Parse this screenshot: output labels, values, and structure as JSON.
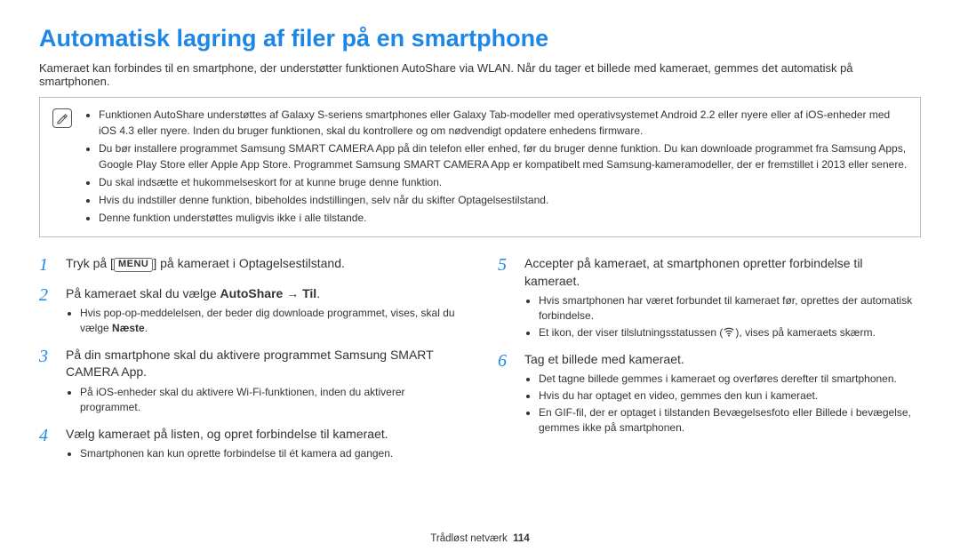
{
  "colors": {
    "title_color": "#1e87e6",
    "step_num_color": "#1e87e6",
    "text_color": "#3a3a3a",
    "border_color": "#bfbfbf",
    "background": "#ffffff"
  },
  "title": "Automatisk lagring af filer på en smartphone",
  "lead": "Kameraet kan forbindes til en smartphone, der understøtter funktionen AutoShare via WLAN. Når du tager et billede med kameraet, gemmes det automatisk på smartphonen.",
  "note_icon_label": "Note",
  "notes": [
    "Funktionen AutoShare understøttes af Galaxy S-seriens smartphones eller Galaxy Tab-modeller med operativsystemet Android 2.2 eller nyere eller af iOS-enheder med iOS 4.3 eller nyere. Inden du bruger funktionen, skal du kontrollere og om nødvendigt opdatere enhedens firmware.",
    "Du bør installere programmet Samsung SMART CAMERA App på din telefon eller enhed, før du bruger denne funktion. Du kan downloade programmet fra Samsung Apps, Google Play Store eller Apple App Store. Programmet Samsung SMART CAMERA App er kompatibelt med Samsung-kameramodeller, der er fremstillet i 2013 eller senere.",
    "Du skal indsætte et hukommelseskort for at kunne bruge denne funktion.",
    "Hvis du indstiller denne funktion, bibeholdes indstillingen, selv når du skifter Optagelsestilstand.",
    "Denne funktion understøttes muligvis ikke i alle tilstande."
  ],
  "menu_label": "MENU",
  "left_steps": [
    {
      "num": "1",
      "main_pre": "Tryk på [",
      "main_post": "] på kameraet i Optagelsestilstand.",
      "has_menu": true,
      "sub": []
    },
    {
      "num": "2",
      "main_pre": "På kameraet skal du vælge ",
      "bold": "AutoShare",
      "arrow": " → ",
      "bold2": "Til",
      "main_post": ".",
      "sub": [
        {
          "pre": "Hvis pop-op-meddelelsen, der beder dig downloade programmet, vises, skal du vælge ",
          "bold": "Næste",
          "post": "."
        }
      ]
    },
    {
      "num": "3",
      "main_pre": "På din smartphone skal du aktivere programmet Samsung SMART CAMERA App.",
      "sub": [
        {
          "pre": "På iOS-enheder skal du aktivere Wi-Fi-funktionen, inden du aktiverer programmet."
        }
      ]
    },
    {
      "num": "4",
      "main_pre": "Vælg kameraet på listen, og opret forbindelse til kameraet.",
      "sub": [
        {
          "pre": "Smartphonen kan kun oprette forbindelse til ét kamera ad gangen."
        }
      ]
    }
  ],
  "right_steps": [
    {
      "num": "5",
      "main_pre": "Accepter på kameraet, at smartphonen opretter forbindelse til kameraet.",
      "sub": [
        {
          "pre": "Hvis smartphonen har været forbundet til kameraet før, oprettes der automatisk forbindelse."
        },
        {
          "pre": "Et ikon, der viser tilslutningsstatussen (",
          "icon": true,
          "post": "), vises på kameraets skærm."
        }
      ]
    },
    {
      "num": "6",
      "main_pre": "Tag et billede med kameraet.",
      "sub": [
        {
          "pre": "Det tagne billede gemmes i kameraet og overføres derefter til smartphonen."
        },
        {
          "pre": "Hvis du har optaget en video, gemmes den kun i kameraet."
        },
        {
          "pre": "En GIF-fil, der er optaget i tilstanden Bevægelsesfoto eller Billede i bevægelse, gemmes ikke på smartphonen."
        }
      ]
    }
  ],
  "footer": {
    "section": "Trådløst netværk",
    "page": "114"
  }
}
